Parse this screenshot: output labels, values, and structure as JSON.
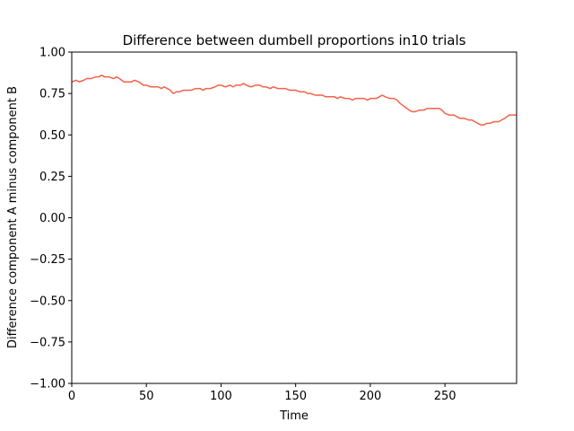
{
  "chart_data": {
    "type": "line",
    "title": "Difference between dumbell proportions in10 trials",
    "xlabel": "Time",
    "ylabel": "Difference component A minus component B",
    "xlim": [
      0,
      298
    ],
    "ylim": [
      -1.0,
      1.0
    ],
    "x_ticks": [
      0,
      50,
      100,
      150,
      200,
      250
    ],
    "x_tick_labels": [
      "0",
      "50",
      "100",
      "150",
      "200",
      "250"
    ],
    "y_ticks": [
      1.0,
      0.75,
      0.5,
      0.25,
      0.0,
      -0.25,
      -0.5,
      -0.75,
      -1.0
    ],
    "y_tick_labels": [
      "1.00",
      "0.75",
      "0.50",
      "0.25",
      "0.00",
      "−0.25",
      "−0.50",
      "−0.75",
      "−1.00"
    ],
    "grid": false,
    "series": [
      {
        "color": "#f4624a",
        "x": [
          0,
          3,
          5,
          8,
          10,
          13,
          16,
          18,
          20,
          22,
          25,
          28,
          30,
          32,
          35,
          38,
          40,
          42,
          45,
          48,
          50,
          53,
          56,
          58,
          60,
          62,
          64,
          66,
          68,
          70,
          72,
          75,
          78,
          80,
          83,
          86,
          88,
          90,
          93,
          96,
          98,
          100,
          103,
          106,
          108,
          110,
          113,
          115,
          117,
          120,
          123,
          126,
          128,
          130,
          133,
          135,
          138,
          140,
          143,
          146,
          148,
          150,
          153,
          156,
          158,
          160,
          163,
          166,
          168,
          170,
          173,
          176,
          178,
          180,
          183,
          186,
          188,
          190,
          193,
          196,
          198,
          200,
          202,
          204,
          206,
          208,
          210,
          213,
          216,
          218,
          220,
          223,
          226,
          228,
          230,
          233,
          236,
          238,
          240,
          243,
          246,
          248,
          250,
          253,
          256,
          258,
          260,
          263,
          266,
          268,
          270,
          272,
          274,
          276,
          278,
          280,
          283,
          286,
          288,
          290,
          293,
          296,
          298
        ],
        "y": [
          0.82,
          0.83,
          0.82,
          0.83,
          0.84,
          0.84,
          0.85,
          0.85,
          0.86,
          0.85,
          0.85,
          0.84,
          0.85,
          0.84,
          0.82,
          0.82,
          0.82,
          0.83,
          0.82,
          0.8,
          0.8,
          0.79,
          0.79,
          0.79,
          0.78,
          0.79,
          0.78,
          0.77,
          0.75,
          0.76,
          0.76,
          0.77,
          0.77,
          0.77,
          0.78,
          0.78,
          0.77,
          0.78,
          0.78,
          0.79,
          0.8,
          0.8,
          0.79,
          0.8,
          0.79,
          0.8,
          0.8,
          0.81,
          0.8,
          0.79,
          0.8,
          0.8,
          0.79,
          0.79,
          0.78,
          0.79,
          0.78,
          0.78,
          0.78,
          0.77,
          0.77,
          0.77,
          0.76,
          0.76,
          0.75,
          0.75,
          0.74,
          0.74,
          0.74,
          0.73,
          0.73,
          0.73,
          0.72,
          0.73,
          0.72,
          0.72,
          0.71,
          0.72,
          0.72,
          0.72,
          0.71,
          0.72,
          0.72,
          0.72,
          0.73,
          0.74,
          0.73,
          0.72,
          0.72,
          0.71,
          0.69,
          0.67,
          0.65,
          0.64,
          0.64,
          0.65,
          0.65,
          0.66,
          0.66,
          0.66,
          0.66,
          0.65,
          0.63,
          0.62,
          0.62,
          0.61,
          0.6,
          0.6,
          0.59,
          0.59,
          0.58,
          0.57,
          0.56,
          0.56,
          0.57,
          0.57,
          0.58,
          0.58,
          0.59,
          0.6,
          0.62,
          0.62,
          0.62
        ]
      }
    ]
  }
}
